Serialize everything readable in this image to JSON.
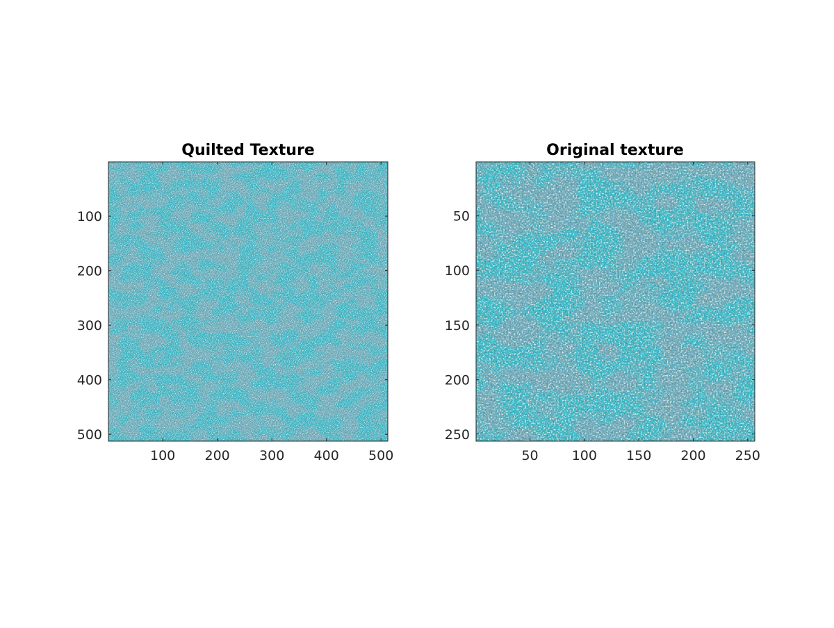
{
  "figure": {
    "background": "#ffffff",
    "texture_colors": {
      "base": "#3cbccb",
      "light": "#8ee0df",
      "highlight": "#c9e8c8",
      "dark": "#2c6f86",
      "shadow": "#1f4c5c",
      "purple": "#5c7fa8"
    }
  },
  "chart_data": [
    {
      "type": "image",
      "title": "Quilted Texture",
      "xlabel": "",
      "ylabel": "",
      "xlim": [
        0.5,
        512.5
      ],
      "ylim": [
        0.5,
        512.5
      ],
      "y_reversed": true,
      "xticks": [
        100,
        200,
        300,
        400,
        500
      ],
      "yticks": [
        100,
        200,
        300,
        400,
        500
      ],
      "image_size": [
        512,
        512
      ],
      "grid": false
    },
    {
      "type": "image",
      "title": "Original texture",
      "xlabel": "",
      "ylabel": "",
      "xlim": [
        0.5,
        256.5
      ],
      "ylim": [
        0.5,
        256.5
      ],
      "y_reversed": true,
      "xticks": [
        50,
        100,
        150,
        200,
        250
      ],
      "yticks": [
        50,
        100,
        150,
        200,
        250
      ],
      "image_size": [
        256,
        256
      ],
      "grid": false
    }
  ]
}
